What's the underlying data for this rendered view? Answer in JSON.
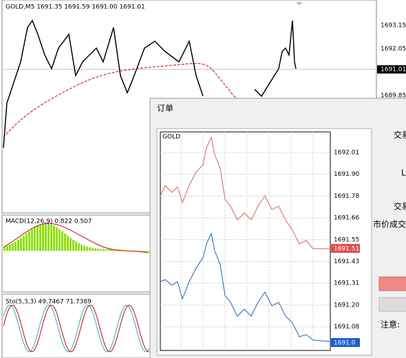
{
  "main_chart": {
    "header": "GOLD,M5  1691.35 1691.59 1691.00 1691.01",
    "price_labels": [
      "1693.15",
      "1692.05",
      "1689.85"
    ],
    "current_price": "1691.01"
  },
  "macd": {
    "label": "MACD(12,26,9) 0.822 0.507"
  },
  "stochastic": {
    "label": "Sto(5,3,3) 49.7467 71.7389"
  },
  "order_dialog": {
    "title": "订单",
    "chart": {
      "symbol": "GOLD",
      "price_labels": [
        "1692.01",
        "1691.90",
        "1691.78",
        "1691.66",
        "1691.55",
        "1691.43",
        "1691.31",
        "1691.20",
        "1691.08"
      ],
      "bid_label": "1691.51",
      "ask_label": "1691.0"
    },
    "labels": [
      "交易",
      "L",
      "交易",
      "市价成交"
    ],
    "note": "注意:"
  }
}
